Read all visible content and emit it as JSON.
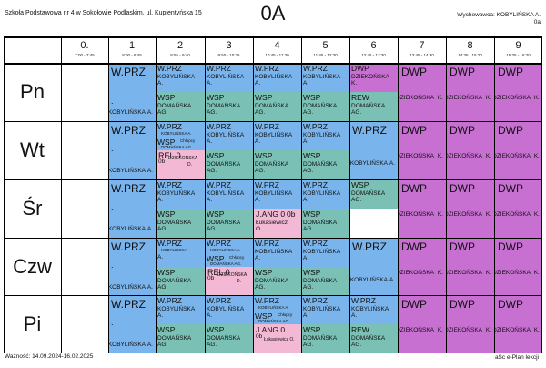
{
  "header": {
    "school": "Szkoła Podstawowa nr 4 w Sokołowie Podlaskim, ul. Kupientyńska 15",
    "title": "0A",
    "teacher_line1": "Wychowawca: KOBYLIŃSKA A.",
    "teacher_line2": "0a"
  },
  "periods": [
    {
      "num": "0.",
      "time": "7:00 - 7:45"
    },
    {
      "num": "1",
      "time": "8:00 - 8:45"
    },
    {
      "num": "2",
      "time": "8:55 - 9:40"
    },
    {
      "num": "3",
      "time": "9:50 - 10:35"
    },
    {
      "num": "4",
      "time": "10:45 - 11:30"
    },
    {
      "num": "5",
      "time": "11:45 - 12:30"
    },
    {
      "num": "6",
      "time": "12:45 - 13:30"
    },
    {
      "num": "7",
      "time": "13:45 - 14:30"
    },
    {
      "num": "8",
      "time": "14:35 - 15:20"
    },
    {
      "num": "9",
      "time": "15:25 - 16:20"
    }
  ],
  "days": [
    "Pn",
    "Wt",
    "Śr",
    "Czw",
    "Pi"
  ],
  "text": {
    "wprz": "W.PRZ",
    "dot": ".",
    "kob": "KOBYLIŃSKA",
    "a": "A.",
    "wsp": "WSP",
    "dom": "DOMAŃSKA",
    "ag": "AG.",
    "dwp": "DWP",
    "dzi": "DZIEKOŃSKA",
    "k": "K.",
    "rew": "REW",
    "kob_a": "KOBYLIŃSKA A.",
    "chl": "Chłopcy",
    "dom_ag": "DOMAŃSKA AG.",
    "rel": "REL 0",
    "zb": "0b",
    "dzi_short": "DZIEKOŃSKA",
    "d": "D.",
    "jang": "J.ANG 0",
    "luk": "Łukasiewicz",
    "o": "O.",
    "luk_o": "Łukasiewicz O."
  },
  "colors": {
    "blue": "#7ab4ec",
    "green": "#7ac0b4",
    "pink": "#f3b8d3",
    "purple": "#c86fd2"
  },
  "footer": {
    "valid": "Ważność: 14.09.2024-16.02.2025",
    "app": "aSc e-Plan lekcji"
  }
}
